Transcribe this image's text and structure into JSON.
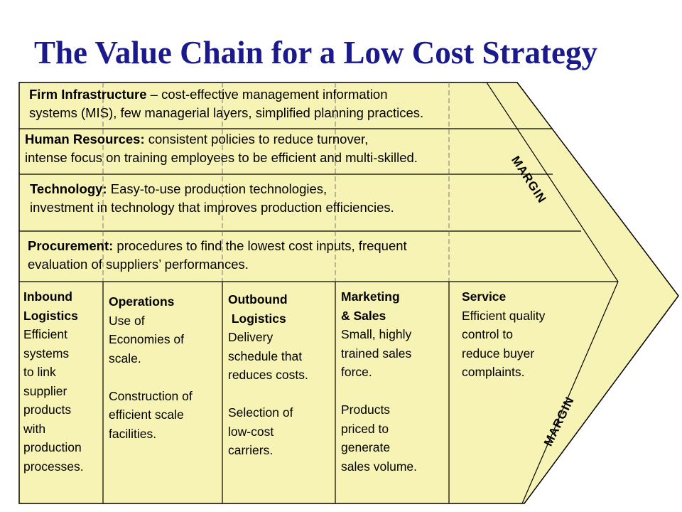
{
  "title": "The Value Chain for a Low Cost Strategy",
  "support_activities": [
    {
      "heading": "Firm Infrastructure",
      "line1_rest": " – cost-effective management information",
      "line2": "systems (MIS), few managerial layers, simplified planning practices."
    },
    {
      "heading": "Human Resources:",
      "line1_rest": "  consistent policies to reduce turnover,",
      "line2": "intense focus on training employees to be efficient and multi-skilled."
    },
    {
      "heading": "Technology:",
      "line1_rest": " Easy-to-use production technologies,",
      "line2": "investment in technology that improves production efficiencies."
    },
    {
      "heading": "Procurement:",
      "line1_rest": "  procedures to find the lowest cost inputs, frequent",
      "line2": "evaluation of suppliers’ performances."
    }
  ],
  "primary_activities": [
    {
      "heading_lines": [
        "Inbound",
        "Logistics"
      ],
      "body_lines": [
        "Efficient",
        "systems",
        "to link",
        "supplier",
        "products",
        "with",
        "production",
        "processes."
      ]
    },
    {
      "heading_lines": [
        "Operations"
      ],
      "body_lines": [
        "Use of",
        "Economies of",
        "scale.",
        "",
        "Construction of",
        "efficient scale",
        "facilities."
      ]
    },
    {
      "heading_lines": [
        "Outbound",
        " Logistics"
      ],
      "body_lines": [
        "Delivery",
        "schedule that",
        "reduces costs.",
        "",
        "Selection of",
        "low-cost",
        "carriers."
      ]
    },
    {
      "heading_lines": [
        "Marketing",
        "& Sales"
      ],
      "body_lines": [
        "Small, highly",
        "trained sales",
        "force.",
        "",
        "Products",
        "priced to",
        "generate",
        "sales volume."
      ]
    },
    {
      "heading_lines": [
        "Service"
      ],
      "body_lines": [
        "Efficient quality",
        "control to",
        "reduce buyer",
        "complaints."
      ]
    }
  ],
  "margin_labels": [
    "MARGIN",
    "MARGIN"
  ],
  "colors": {
    "fill": "#f7f3b4",
    "title": "#1a1a8c",
    "line": "#000000"
  }
}
